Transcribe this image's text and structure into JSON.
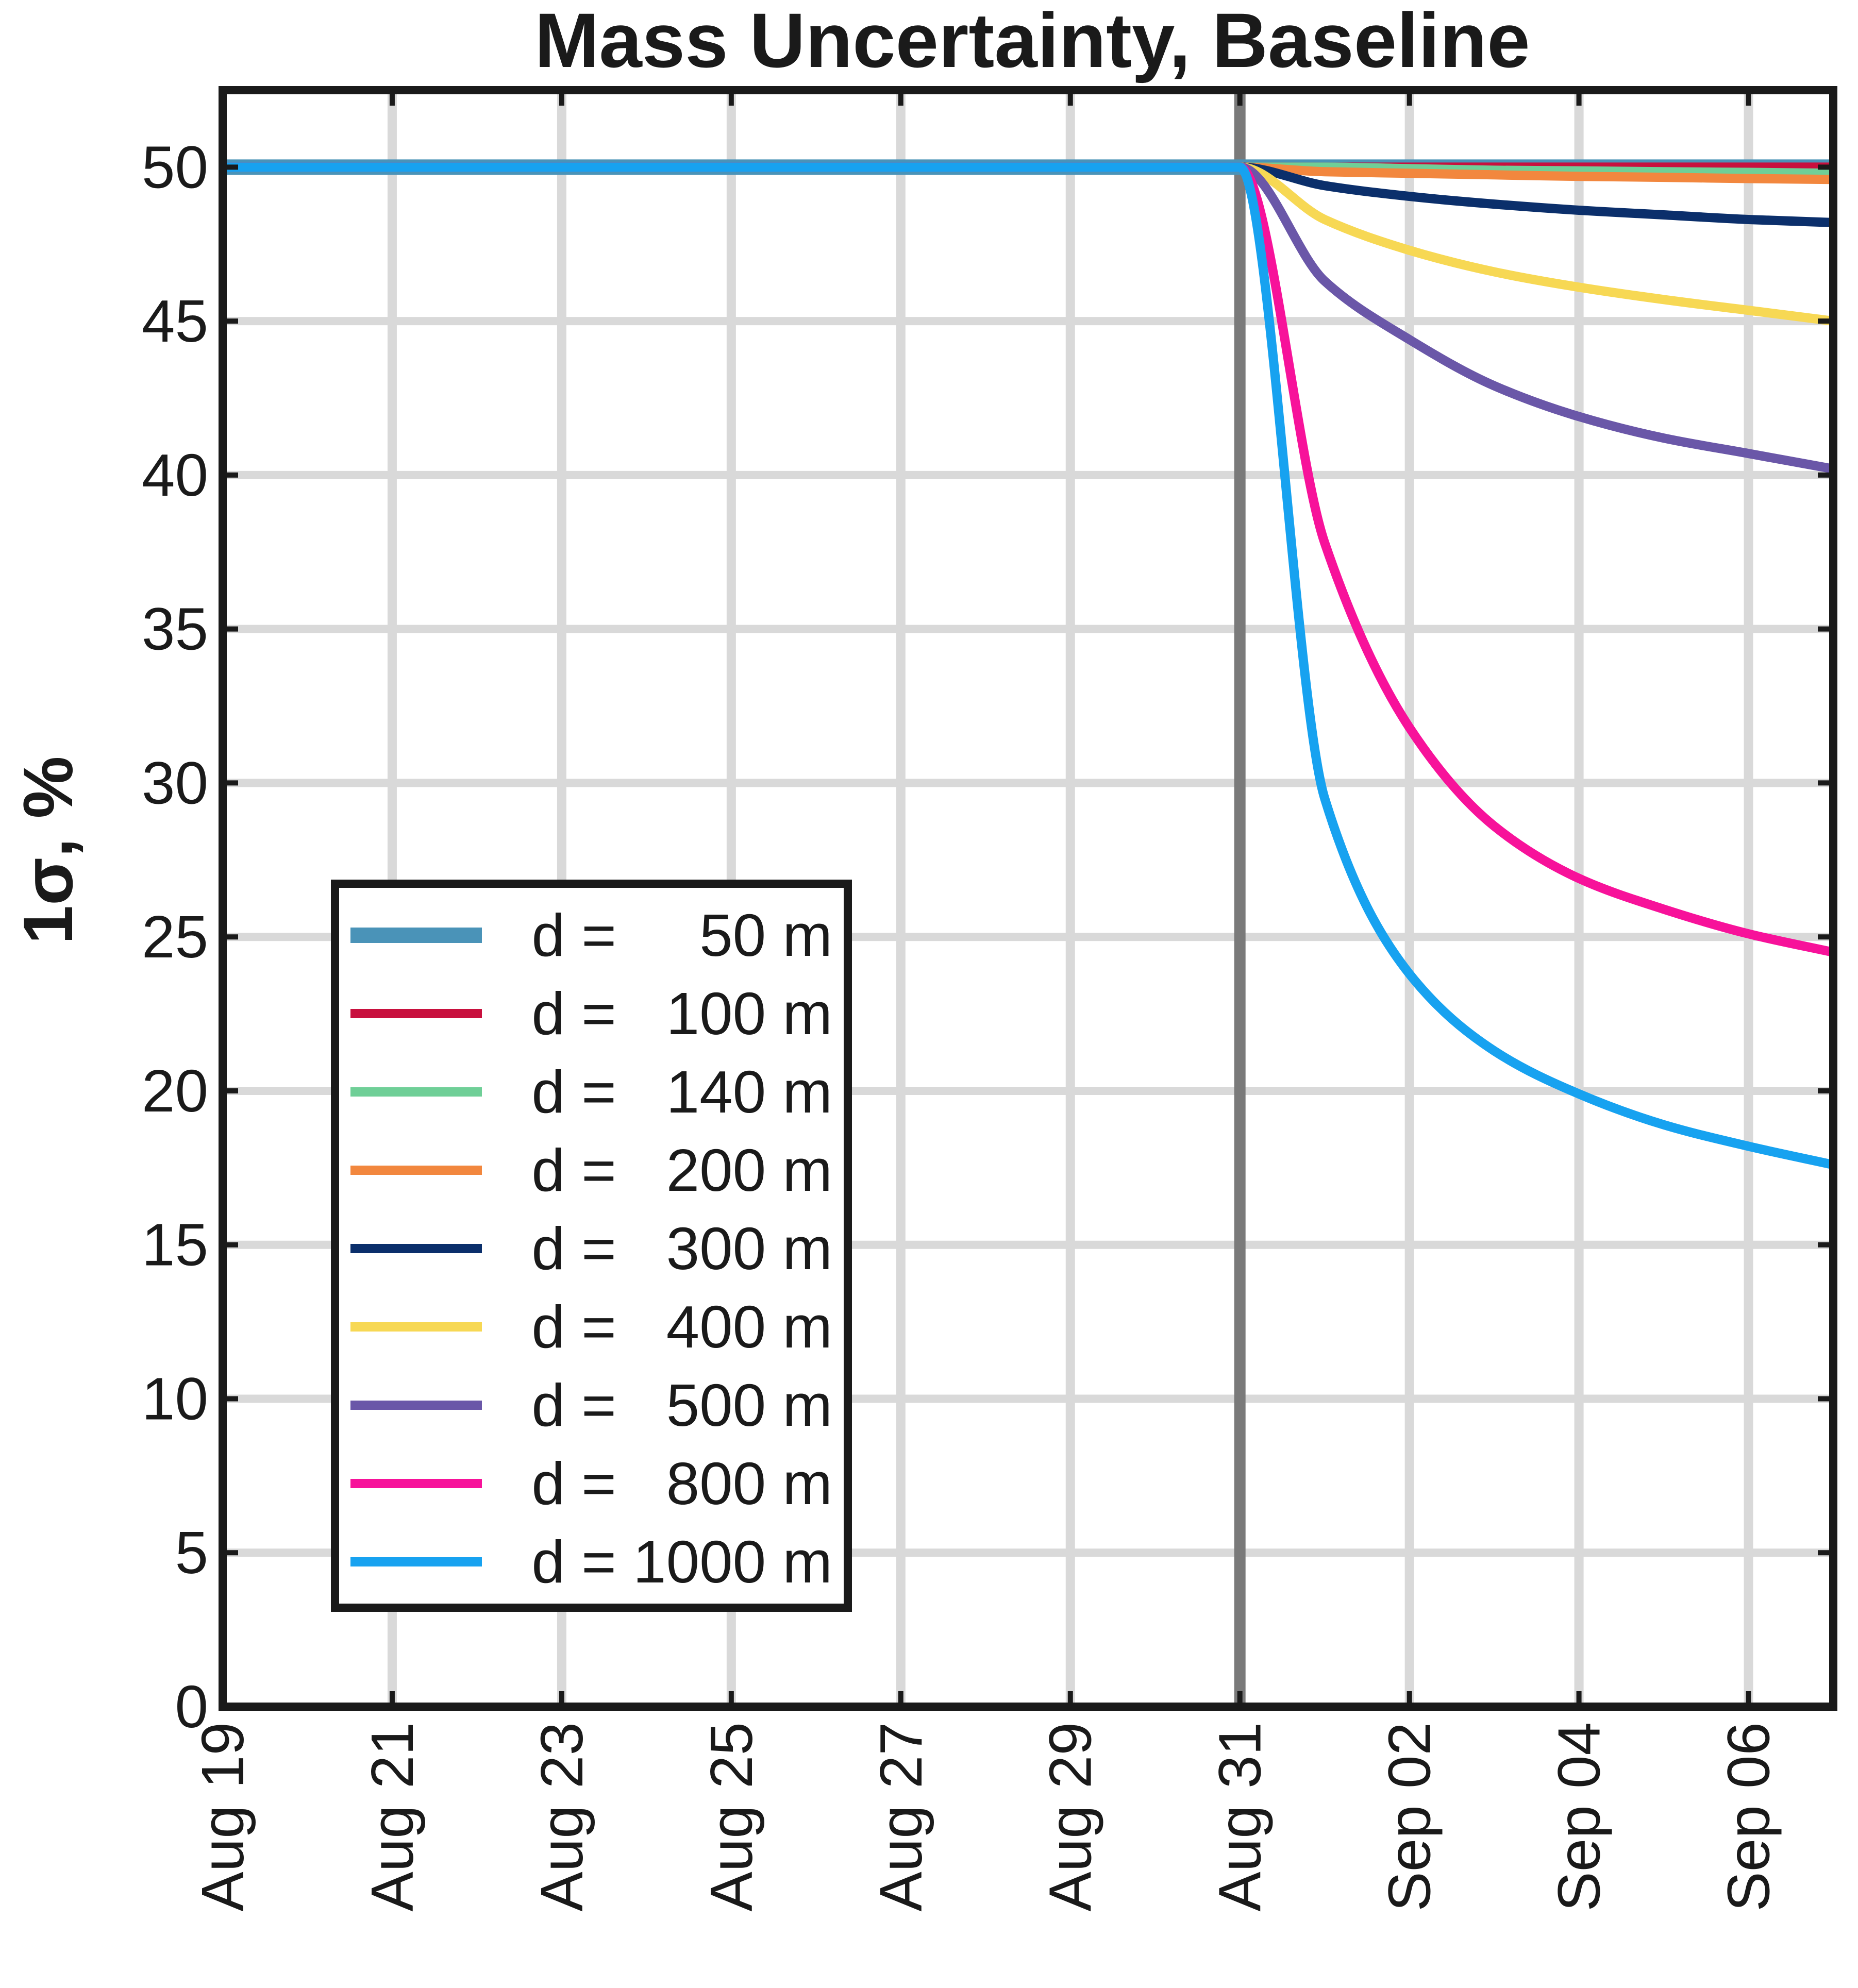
{
  "chart_data": {
    "type": "line",
    "title": "Mass Uncertainty, Baseline",
    "ylabel": "1σ, %",
    "xlabel": "",
    "xlim": [
      "Aug 19",
      "Sep 07"
    ],
    "ylim": [
      0,
      52.5
    ],
    "grid": true,
    "legend_position": "bottom-left",
    "x_tick_labels": [
      "Aug 19",
      "Aug 21",
      "Aug 23",
      "Aug 25",
      "Aug 27",
      "Aug 29",
      "Aug 31",
      "Sep 02",
      "Sep 04",
      "Sep 06"
    ],
    "y_ticks": [
      0,
      5,
      10,
      15,
      20,
      25,
      30,
      35,
      40,
      45,
      50
    ],
    "vertical_marker": "Aug 31",
    "x_dates": [
      "Aug 19",
      "Aug 31",
      "Sep 01",
      "Sep 02",
      "Sep 03",
      "Sep 04",
      "Sep 05",
      "Sep 06",
      "Sep 07"
    ],
    "series": [
      {
        "name": "d =     50 m",
        "color": "#4a93b8",
        "values": [
          50,
          50,
          50,
          50,
          50,
          50,
          50,
          50,
          50
        ]
      },
      {
        "name": "d =   100 m",
        "color": "#c8103e",
        "values": [
          50,
          50,
          50,
          50,
          50,
          50,
          50,
          50,
          50
        ]
      },
      {
        "name": "d =   140 m",
        "color": "#6fcf97",
        "values": [
          50,
          50,
          50,
          49.95,
          49.9,
          49.88,
          49.85,
          49.83,
          49.8
        ]
      },
      {
        "name": "d =   200 m",
        "color": "#f2873e",
        "values": [
          50,
          50,
          49.85,
          49.8,
          49.75,
          49.7,
          49.67,
          49.63,
          49.6
        ]
      },
      {
        "name": "d =   300 m",
        "color": "#0b2f6b",
        "values": [
          50,
          50,
          49.4,
          49.05,
          48.8,
          48.6,
          48.45,
          48.3,
          48.2
        ]
      },
      {
        "name": "d =   400 m",
        "color": "#f7d854",
        "values": [
          50,
          50,
          48.3,
          47.3,
          46.6,
          46.1,
          45.7,
          45.35,
          45.0
        ]
      },
      {
        "name": "d =   500 m",
        "color": "#6a57a8",
        "values": [
          50,
          50,
          46.3,
          44.4,
          42.9,
          41.9,
          41.2,
          40.7,
          40.2
        ]
      },
      {
        "name": "d =   800 m",
        "color": "#f7129a",
        "values": [
          50,
          50,
          37.8,
          31.8,
          28.6,
          26.9,
          25.9,
          25.1,
          24.5
        ]
      },
      {
        "name": "d = 1000 m",
        "color": "#17a2f0",
        "values": [
          50,
          50,
          29.5,
          23.8,
          21.3,
          19.9,
          18.9,
          18.2,
          17.6
        ]
      }
    ]
  }
}
